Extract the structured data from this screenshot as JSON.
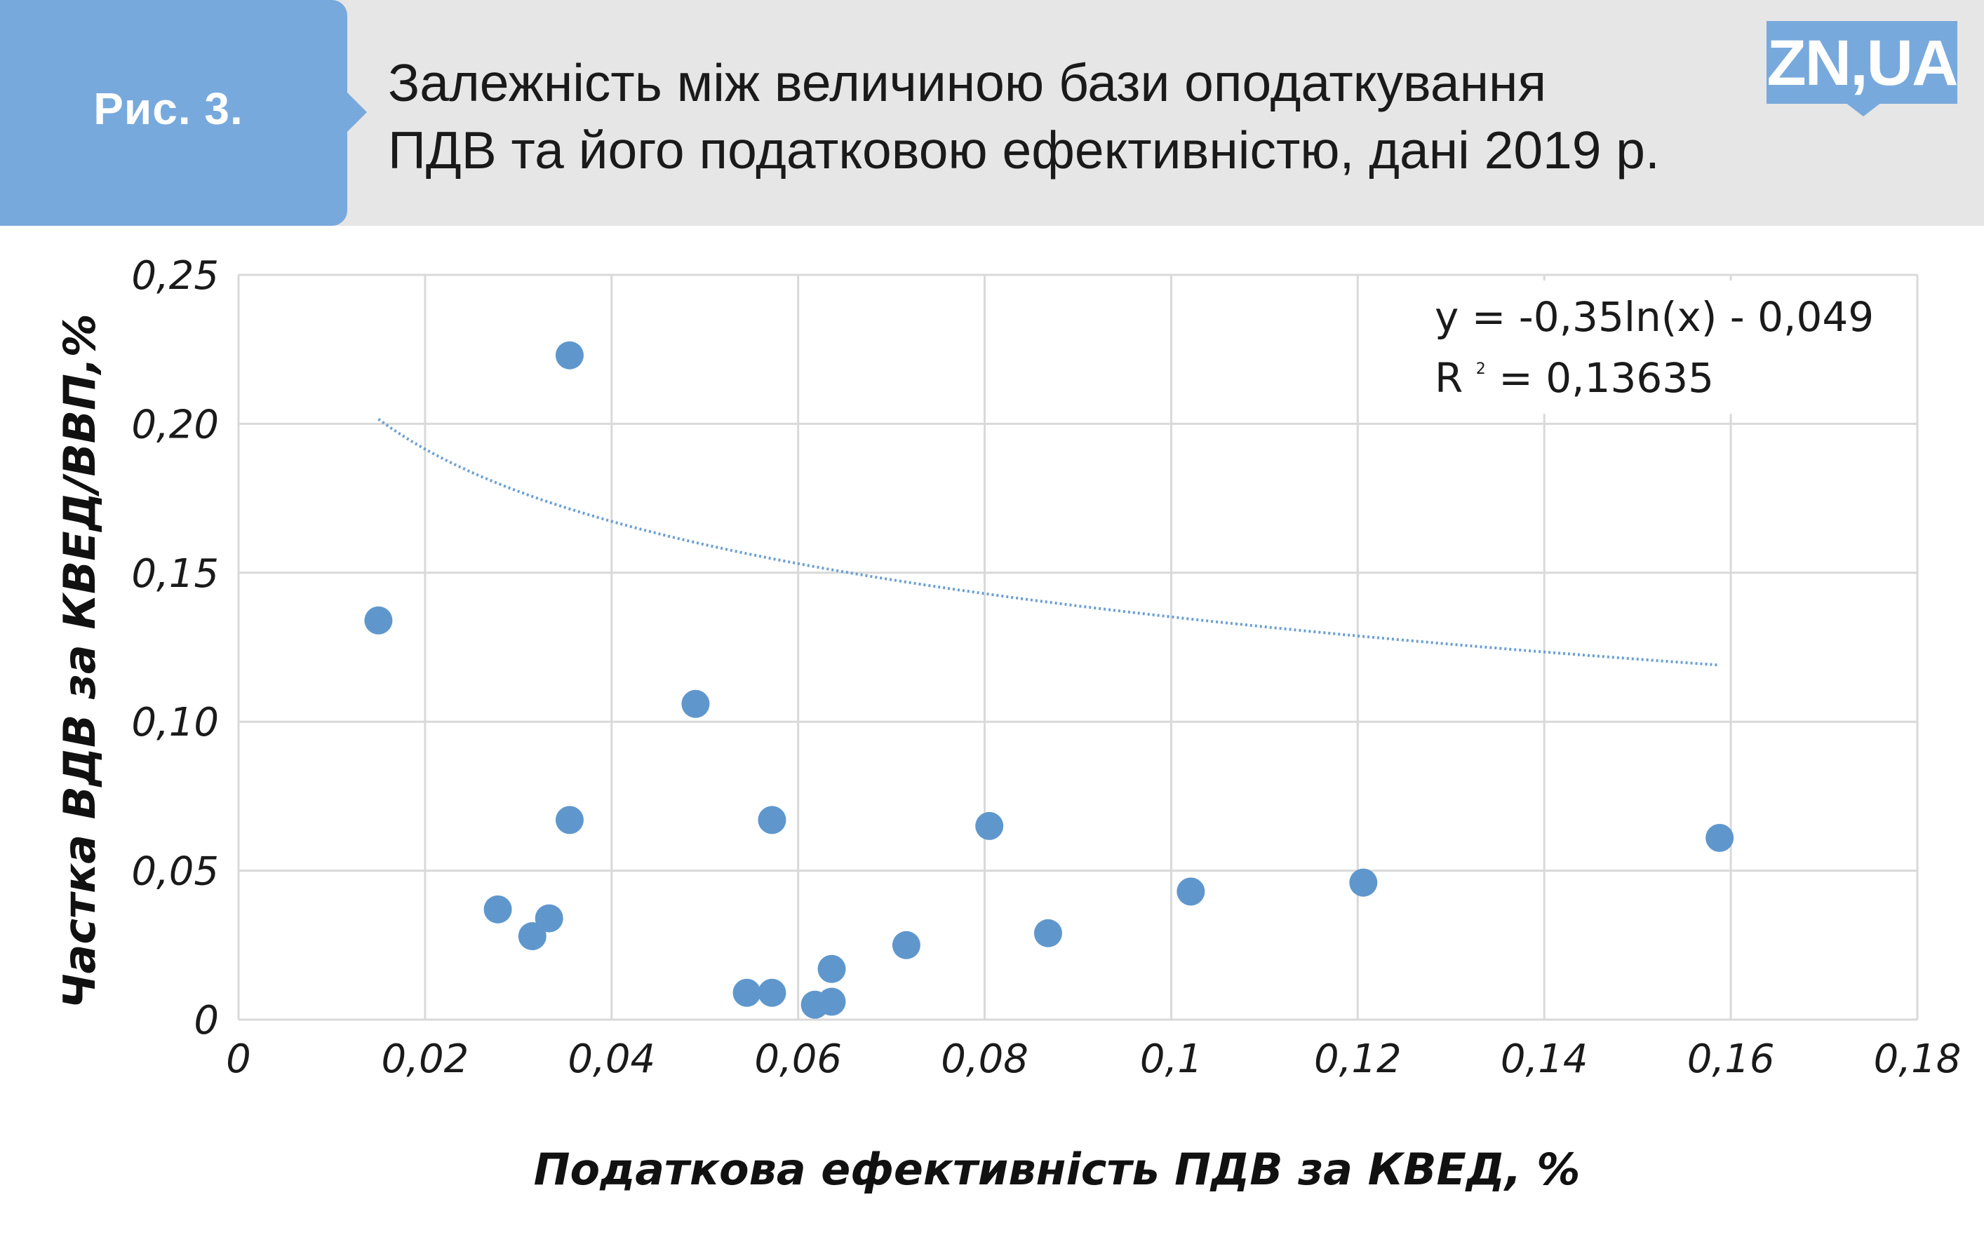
{
  "header": {
    "figure_label": "Рис. 3.",
    "title_line1": "Залежність між величиною бази оподаткування",
    "title_line2": "ПДВ та його податковою ефективністю, дані 2019 р.",
    "logo_text": "ZN,UA"
  },
  "colors": {
    "accent": "#78a9dc",
    "point": "#5f97cd",
    "trend": "#6b9fd3",
    "header_bg": "#e6e6e6",
    "grid": "#d9d9d9"
  },
  "chart_data": {
    "type": "scatter",
    "xlabel": "Податкова ефективність ПДВ за КВЕД, %",
    "ylabel": "Частка ВДВ за КВЕД/ВВП,%",
    "xlim": [
      0,
      0.18
    ],
    "ylim": [
      0,
      0.25
    ],
    "x_ticks": [
      0,
      0.02,
      0.04,
      0.06,
      0.08,
      0.1,
      0.12,
      0.14,
      0.16,
      0.18
    ],
    "y_ticks": [
      0,
      0.05,
      0.1,
      0.15,
      0.2,
      0.25
    ],
    "x_tick_labels": [
      "0",
      "0,02",
      "0,04",
      "0,06",
      "0,08",
      "0,1",
      "0,12",
      "0,14",
      "0,16",
      "0,18"
    ],
    "y_tick_labels": [
      "0",
      "0,05",
      "0,10",
      "0,15",
      "0,20",
      "0,25"
    ],
    "grid": true,
    "points": [
      {
        "x": 0.015,
        "y": 0.134
      },
      {
        "x": 0.0355,
        "y": 0.223
      },
      {
        "x": 0.0355,
        "y": 0.067
      },
      {
        "x": 0.0278,
        "y": 0.037
      },
      {
        "x": 0.0315,
        "y": 0.028
      },
      {
        "x": 0.0333,
        "y": 0.034
      },
      {
        "x": 0.049,
        "y": 0.106
      },
      {
        "x": 0.0572,
        "y": 0.067
      },
      {
        "x": 0.0545,
        "y": 0.009
      },
      {
        "x": 0.0572,
        "y": 0.009
      },
      {
        "x": 0.0618,
        "y": 0.005
      },
      {
        "x": 0.0636,
        "y": 0.006
      },
      {
        "x": 0.0636,
        "y": 0.017
      },
      {
        "x": 0.0716,
        "y": 0.025
      },
      {
        "x": 0.0805,
        "y": 0.065
      },
      {
        "x": 0.0868,
        "y": 0.029
      },
      {
        "x": 0.1021,
        "y": 0.043
      },
      {
        "x": 0.1206,
        "y": 0.046
      },
      {
        "x": 0.1588,
        "y": 0.061
      }
    ],
    "trendline": {
      "type": "logarithmic",
      "a": -0.35,
      "b": -0.049,
      "x_range": [
        0.015,
        0.1588
      ],
      "equation_text": "y = -0,35ln(x) - 0,049",
      "r2_prefix": "R",
      "r2_superscript": "2",
      "r2_value_text": " = 0,13635"
    }
  }
}
